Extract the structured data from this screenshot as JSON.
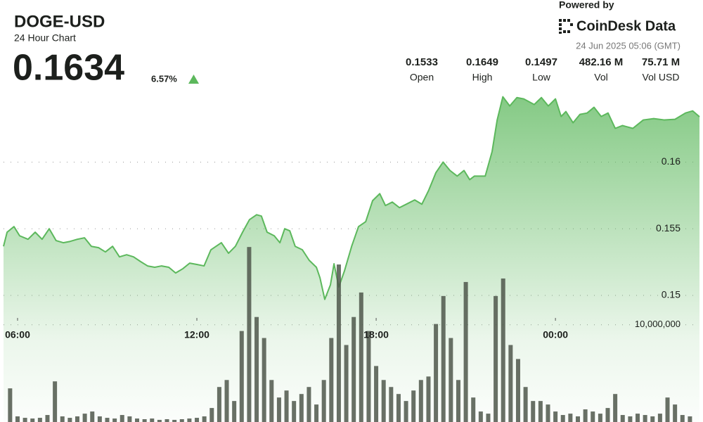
{
  "chart_data": {
    "type": "area",
    "title": "DOGE-USD",
    "subtitle": "24 Hour Chart",
    "summary": {
      "price": "0.1634",
      "change": "6.57%"
    },
    "branding": {
      "powered_by": "Powered by",
      "brand": "CoinDesk Data",
      "timestamp": "24 Jun 2025 05:06 (GMT)"
    },
    "stats": [
      {
        "value": "0.1533",
        "label": "Open"
      },
      {
        "value": "0.1649",
        "label": "High"
      },
      {
        "value": "0.1497",
        "label": "Low"
      },
      {
        "value": "482.16 M",
        "label": "Vol"
      },
      {
        "value": "75.71 M",
        "label": "Vol USD"
      }
    ],
    "xlim": [
      5.53,
      28.82
    ],
    "xticks": [
      {
        "value": 6,
        "label": "06:00"
      },
      {
        "value": 12,
        "label": "12:00"
      },
      {
        "value": 18,
        "label": "18:00"
      },
      {
        "value": 24,
        "label": "00:00"
      }
    ],
    "ylim": [
      0.1405,
      0.1653
    ],
    "yticks": [
      0.15,
      0.155,
      0.16
    ],
    "y2lim": [
      0,
      34000000
    ],
    "y2ticks": [
      {
        "value": 10000000,
        "label": "10,000,000"
      }
    ],
    "grid": true,
    "series": [
      {
        "type": "area",
        "color": "#5cb85c",
        "x": [
          5.53,
          5.65,
          5.88,
          6.07,
          6.35,
          6.59,
          6.82,
          7.06,
          7.29,
          7.53,
          7.76,
          8.0,
          8.24,
          8.47,
          8.71,
          8.94,
          9.18,
          9.41,
          9.65,
          9.88,
          10.12,
          10.35,
          10.59,
          10.82,
          11.06,
          11.29,
          11.53,
          11.76,
          12.0,
          12.24,
          12.47,
          12.82,
          13.06,
          13.29,
          13.53,
          13.76,
          14.0,
          14.16,
          14.35,
          14.59,
          14.78,
          14.94,
          15.11,
          15.29,
          15.53,
          15.76,
          16.0,
          16.12,
          16.28,
          16.47,
          16.59,
          16.75,
          16.94,
          17.18,
          17.41,
          17.65,
          17.88,
          18.12,
          18.31,
          18.54,
          18.78,
          19.01,
          19.29,
          19.53,
          19.76,
          20.0,
          20.24,
          20.47,
          20.71,
          20.94,
          21.13,
          21.29,
          21.65,
          21.88,
          22.05,
          22.24,
          22.47,
          22.71,
          22.94,
          23.29,
          23.53,
          23.76,
          24.0,
          24.19,
          24.35,
          24.59,
          24.82,
          25.06,
          25.29,
          25.53,
          25.76,
          26.0,
          26.24,
          26.59,
          26.94,
          27.29,
          27.65,
          28.0,
          28.35,
          28.59,
          28.82
        ],
        "values": [
          0.15368,
          0.15474,
          0.15516,
          0.15447,
          0.15421,
          0.15474,
          0.15421,
          0.155,
          0.15411,
          0.15395,
          0.15405,
          0.15421,
          0.15432,
          0.15368,
          0.15358,
          0.15326,
          0.15368,
          0.15289,
          0.15305,
          0.15289,
          0.15253,
          0.15221,
          0.15211,
          0.15221,
          0.15211,
          0.15168,
          0.152,
          0.15242,
          0.15232,
          0.15221,
          0.15342,
          0.15395,
          0.15316,
          0.15368,
          0.15474,
          0.15568,
          0.15605,
          0.15595,
          0.15474,
          0.15447,
          0.15395,
          0.155,
          0.15484,
          0.15368,
          0.15342,
          0.15263,
          0.15211,
          0.15132,
          0.1497,
          0.15079,
          0.15237,
          0.15063,
          0.15184,
          0.15368,
          0.15516,
          0.15553,
          0.1571,
          0.15763,
          0.15674,
          0.157,
          0.15658,
          0.15684,
          0.15716,
          0.15684,
          0.15789,
          0.15921,
          0.16,
          0.15937,
          0.15895,
          0.15937,
          0.15868,
          0.15895,
          0.15895,
          0.16079,
          0.16316,
          0.1649,
          0.16421,
          0.16484,
          0.16474,
          0.16432,
          0.16484,
          0.16421,
          0.16474,
          0.16342,
          0.16379,
          0.16295,
          0.16358,
          0.16368,
          0.16411,
          0.16342,
          0.16368,
          0.16253,
          0.16274,
          0.16253,
          0.16316,
          0.16326,
          0.16316,
          0.16321,
          0.16368,
          0.16384,
          0.1634
        ]
      },
      {
        "type": "bar",
        "axis": "y2",
        "color": "#4f574b",
        "x": [
          5.75,
          6,
          6.25,
          6.5,
          6.75,
          7,
          7.25,
          7.5,
          7.75,
          8,
          8.25,
          8.5,
          8.75,
          9,
          9.25,
          9.5,
          9.75,
          10,
          10.25,
          10.5,
          10.75,
          11,
          11.25,
          11.5,
          11.75,
          12,
          12.25,
          12.5,
          12.75,
          13,
          13.25,
          13.5,
          13.75,
          14,
          14.25,
          14.5,
          14.75,
          15,
          15.25,
          15.5,
          15.75,
          16,
          16.25,
          16.5,
          16.75,
          17,
          17.25,
          17.5,
          17.75,
          18,
          18.25,
          18.5,
          18.75,
          19,
          19.25,
          19.5,
          19.75,
          20,
          20.25,
          20.5,
          20.75,
          21,
          21.25,
          21.5,
          21.75,
          22,
          22.25,
          22.5,
          22.75,
          23,
          23.25,
          23.5,
          23.75,
          24,
          24.25,
          24.5,
          24.75,
          25,
          25.25,
          25.5,
          25.75,
          26,
          26.25,
          26.5,
          26.75,
          27,
          27.25,
          27.5,
          27.75,
          28,
          28.25,
          28.5
        ],
        "values": [
          3460000,
          580000,
          430000,
          360000,
          430000,
          720000,
          4180000,
          580000,
          430000,
          580000,
          860000,
          1080000,
          580000,
          430000,
          360000,
          720000,
          580000,
          360000,
          290000,
          360000,
          220000,
          290000,
          220000,
          290000,
          360000,
          430000,
          580000,
          1440000,
          3600000,
          4320000,
          2160000,
          9360000,
          18000000,
          10800000,
          8640000,
          4320000,
          2520000,
          3240000,
          2160000,
          2880000,
          3600000,
          1800000,
          4320000,
          8640000,
          16200000,
          7920000,
          10800000,
          13320000,
          9360000,
          5760000,
          4320000,
          3600000,
          2880000,
          2160000,
          3240000,
          4320000,
          4680000,
          10080000,
          12960000,
          8640000,
          4320000,
          14400000,
          2520000,
          1080000,
          860000,
          12960000,
          14760000,
          7920000,
          6480000,
          3600000,
          2160000,
          2160000,
          1800000,
          1080000,
          720000,
          860000,
          580000,
          1300000,
          1080000,
          860000,
          1440000,
          2880000,
          720000,
          580000,
          860000,
          720000,
          580000,
          860000,
          2520000,
          1800000,
          720000,
          580000
        ]
      }
    ]
  }
}
